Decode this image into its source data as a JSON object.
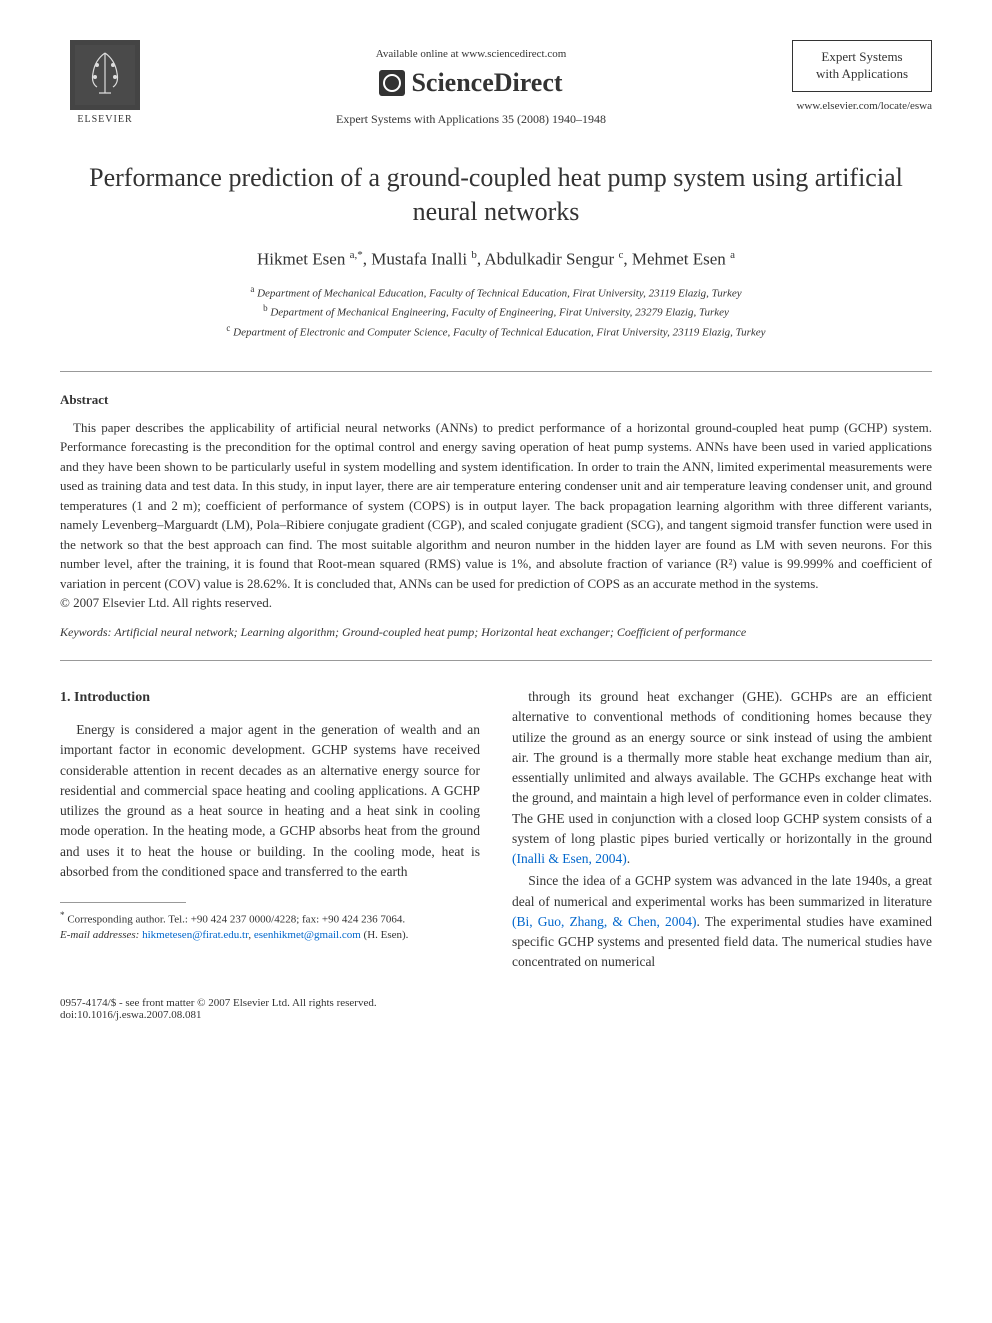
{
  "header": {
    "available_text": "Available online at www.sciencedirect.com",
    "sciencedirect": "ScienceDirect",
    "journal_ref": "Expert Systems with Applications 35 (2008) 1940–1948",
    "journal_box_line1": "Expert Systems",
    "journal_box_line2": "with Applications",
    "journal_url": "www.elsevier.com/locate/eswa",
    "elsevier_label": "ELSEVIER"
  },
  "title": "Performance prediction of a ground-coupled heat pump system using artificial neural networks",
  "authors_html": "Hikmet Esen <sup>a,*</sup>, Mustafa Inalli <sup>b</sup>, Abdulkadir Sengur <sup>c</sup>, Mehmet Esen <sup>a</sup>",
  "affiliations": {
    "a": "Department of Mechanical Education, Faculty of Technical Education, Firat University, 23119 Elazig, Turkey",
    "b": "Department of Mechanical Engineering, Faculty of Engineering, Firat University, 23279 Elazig, Turkey",
    "c": "Department of Electronic and Computer Science, Faculty of Technical Education, Firat University, 23119 Elazig, Turkey"
  },
  "abstract_heading": "Abstract",
  "abstract": "This paper describes the applicability of artificial neural networks (ANNs) to predict performance of a horizontal ground-coupled heat pump (GCHP) system. Performance forecasting is the precondition for the optimal control and energy saving operation of heat pump systems. ANNs have been used in varied applications and they have been shown to be particularly useful in system modelling and system identification. In order to train the ANN, limited experimental measurements were used as training data and test data. In this study, in input layer, there are air temperature entering condenser unit and air temperature leaving condenser unit, and ground temperatures (1 and 2 m); coefficient of performance of system (COPS) is in output layer. The back propagation learning algorithm with three different variants, namely Levenberg–Marguardt (LM), Pola–Ribiere conjugate gradient (CGP), and scaled conjugate gradient (SCG), and tangent sigmoid transfer function were used in the network so that the best approach can find. The most suitable algorithm and neuron number in the hidden layer are found as LM with seven neurons. For this number level, after the training, it is found that Root-mean squared (RMS) value is 1%, and absolute fraction of variance (R²) value is 99.999% and coefficient of variation in percent (COV) value is 28.62%. It is concluded that, ANNs can be used for prediction of COPS as an accurate method in the systems.",
  "copyright": "© 2007 Elsevier Ltd. All rights reserved.",
  "keywords_label": "Keywords:",
  "keywords": "Artificial neural network; Learning algorithm; Ground-coupled heat pump; Horizontal heat exchanger; Coefficient of performance",
  "section1_heading": "1. Introduction",
  "body": {
    "col1_p1": "Energy is considered a major agent in the generation of wealth and an important factor in economic development. GCHP systems have received considerable attention in recent decades as an alternative energy source for residential and commercial space heating and cooling applications. A GCHP utilizes the ground as a heat source in heating and a heat sink in cooling mode operation. In the heating mode, a GCHP absorbs heat from the ground and uses it to heat the house or building. In the cooling mode, heat is absorbed from the conditioned space and transferred to the earth",
    "col2_p1": "through its ground heat exchanger (GHE). GCHPs are an efficient alternative to conventional methods of conditioning homes because they utilize the ground as an energy source or sink instead of using the ambient air. The ground is a thermally more stable heat exchange medium than air, essentially unlimited and always available. The GCHPs exchange heat with the ground, and maintain a high level of performance even in colder climates. The GHE used in conjunction with a closed loop GCHP system consists of a system of long plastic pipes buried vertically or horizontally in the ground ",
    "col2_cite1": "(Inalli & Esen, 2004)",
    "col2_p1_end": ".",
    "col2_p2": "Since the idea of a GCHP system was advanced in the late 1940s, a great deal of numerical and experimental works has been summarized in literature ",
    "col2_cite2": "(Bi, Guo, Zhang, & Chen, 2004)",
    "col2_p2_end": ". The experimental studies have examined specific GCHP systems and presented field data. The numerical studies have concentrated on numerical"
  },
  "footnotes": {
    "corresponding": "Corresponding author. Tel.: +90 424 237 0000/4228; fax: +90 424 236 7064.",
    "email_label": "E-mail addresses:",
    "email1": "hikmetesen@firat.edu.tr",
    "email2": "esenhikmet@gmail.com",
    "email_tail": "(H. Esen)."
  },
  "footer": {
    "line1": "0957-4174/$ - see front matter © 2007 Elsevier Ltd. All rights reserved.",
    "line2": "doi:10.1016/j.eswa.2007.08.081"
  },
  "colors": {
    "text": "#333333",
    "link": "#0066cc",
    "divider": "#999999",
    "background": "#ffffff"
  }
}
